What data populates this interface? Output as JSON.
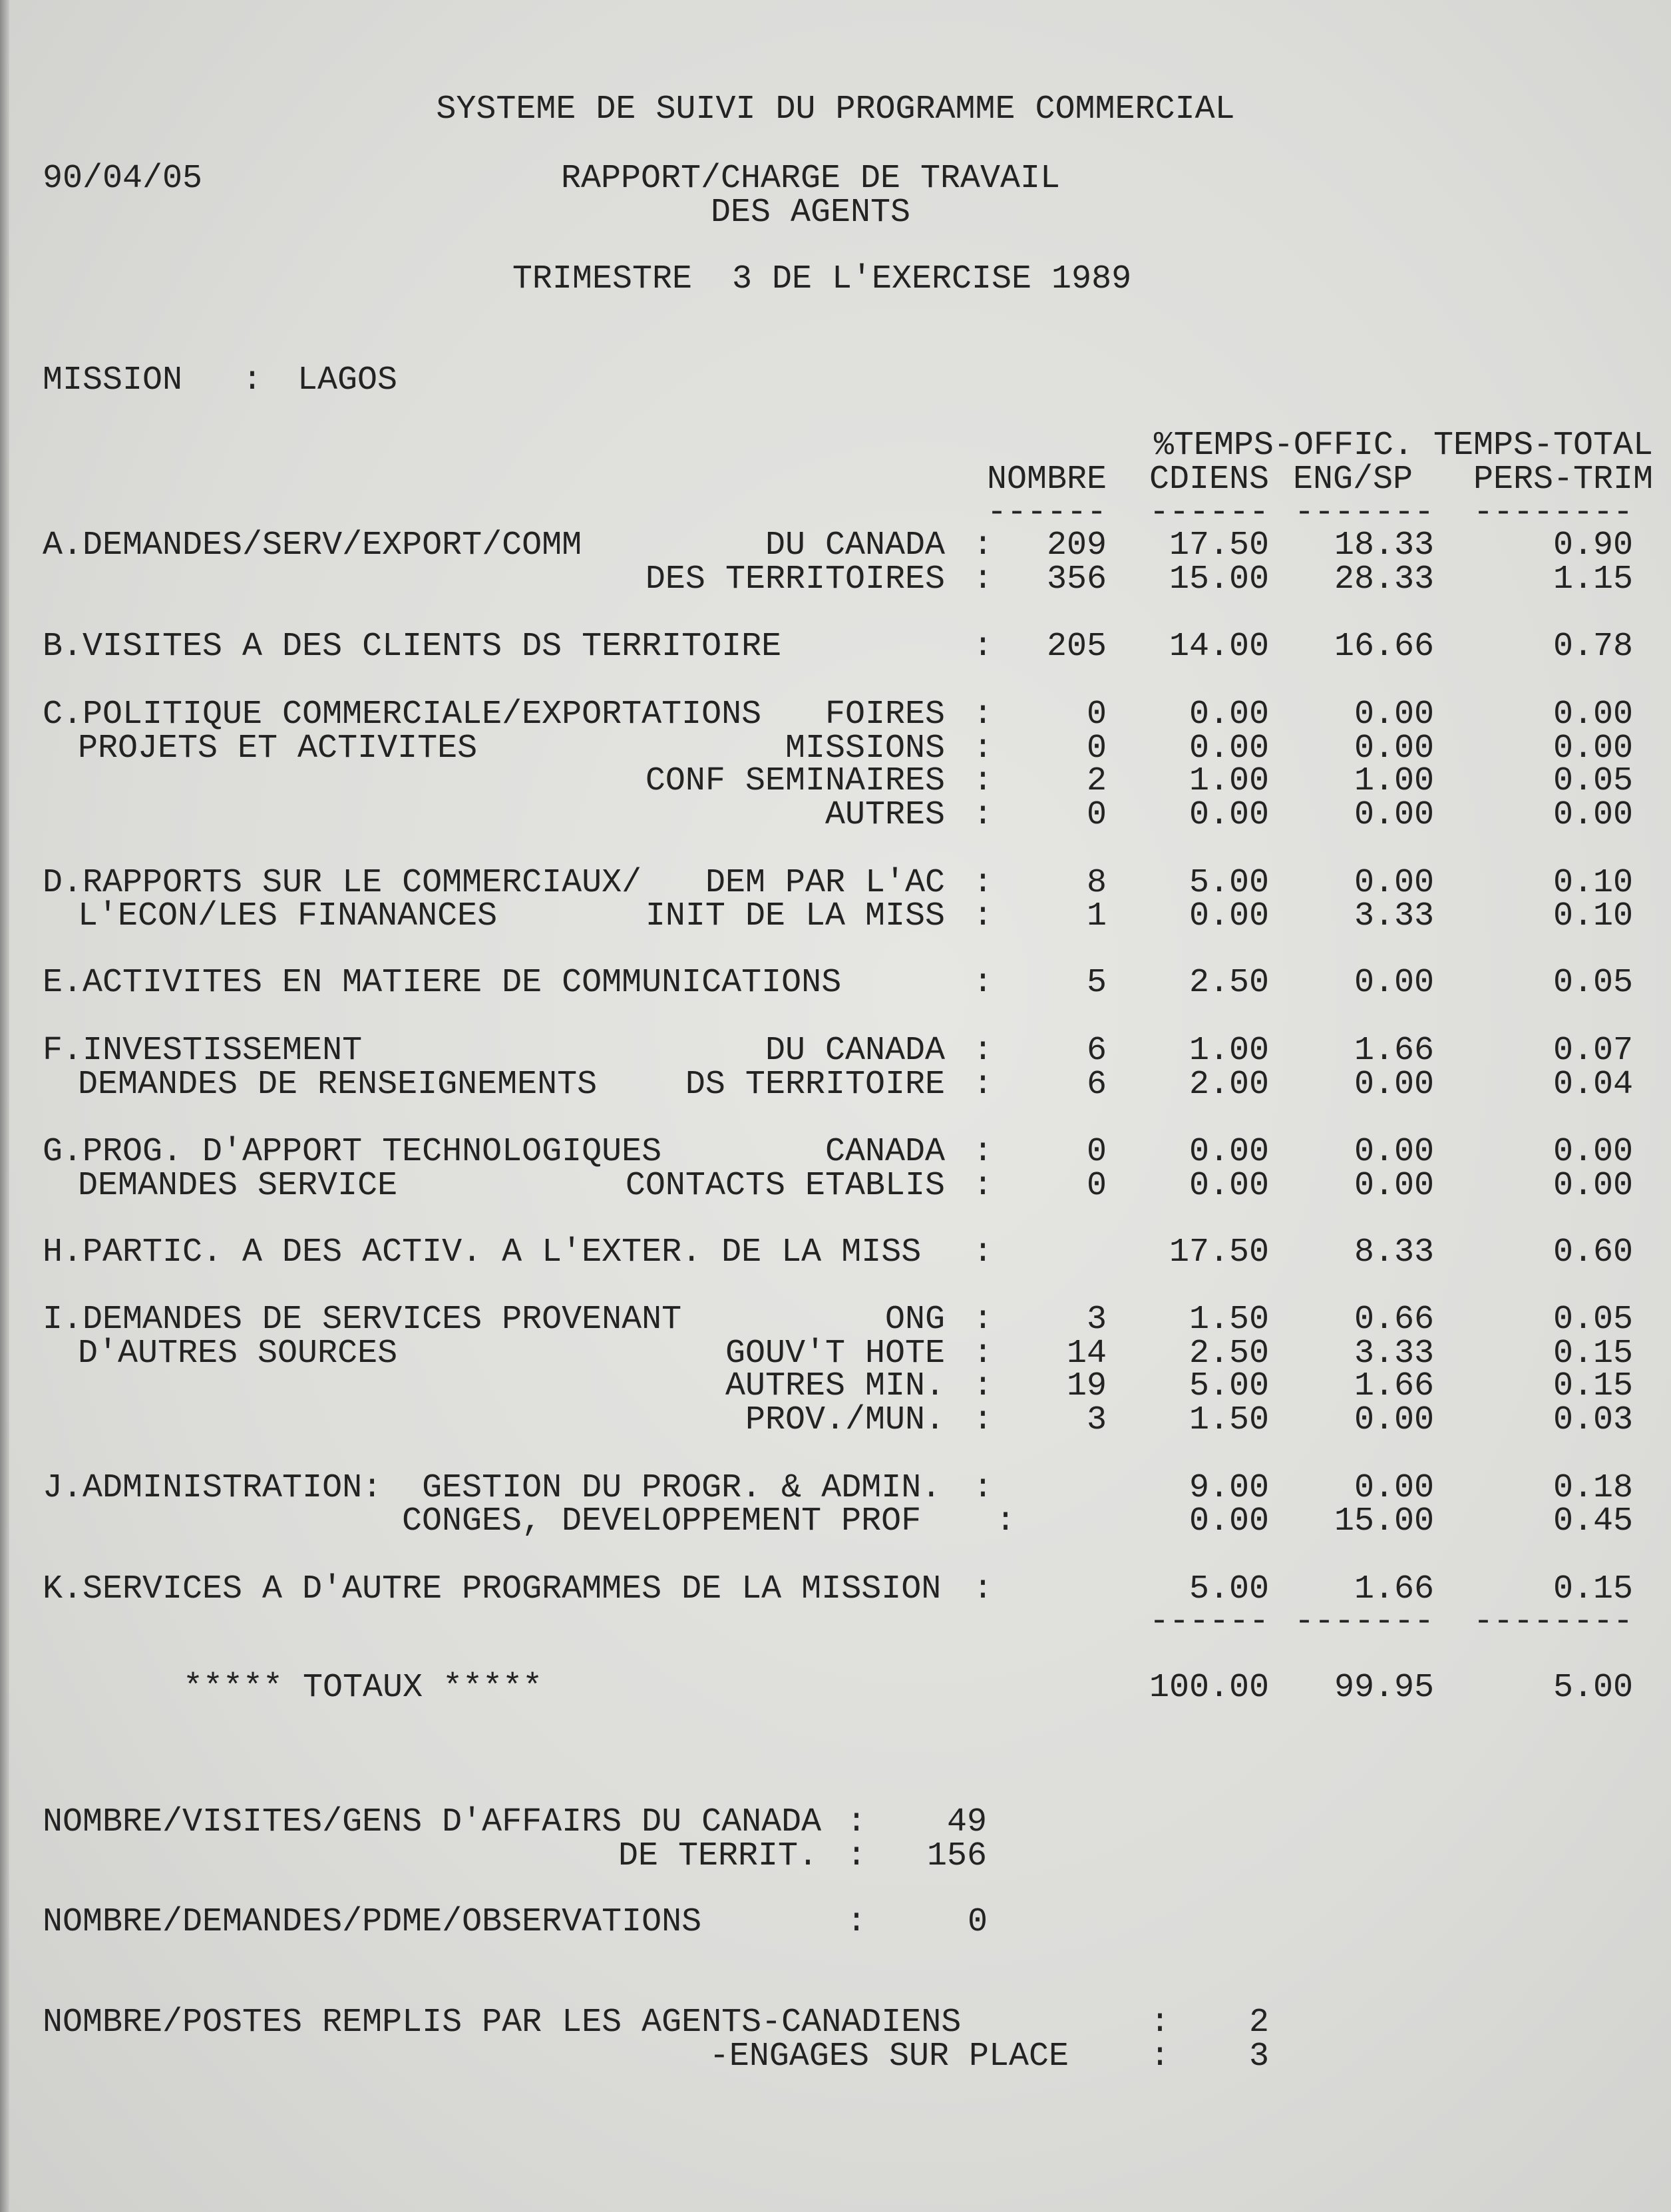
{
  "header": {
    "system_title": "SYSTEME DE SUIVI DU PROGRAMME COMMERCIAL",
    "date": "90/04/05",
    "report_title_1": "RAPPORT/CHARGE DE TRAVAIL",
    "report_title_2": "DES AGENTS",
    "period": "TRIMESTRE  3 DE L'EXERCISE 1989",
    "mission_label": "MISSION   :",
    "mission_value": "LAGOS"
  },
  "columns": {
    "group": "%TEMPS-OFFIC. TEMPS-TOTAL",
    "nombre": "NOMBRE",
    "cdiens": "CDIENS",
    "eng_sp": "ENG/SP",
    "pers_trim": "PERS-TRIM",
    "dash6": "------",
    "dash7": "-------",
    "dash8": "--------"
  },
  "colon": ":",
  "rows": [
    {
      "label": "A.DEMANDES/SERV/EXPORT/COMM",
      "sub": "DU CANADA",
      "nombre": "209",
      "cdiens": "17.50",
      "eng": "18.33",
      "pers": "0.90"
    },
    {
      "label": "",
      "sub": "DES TERRITOIRES",
      "nombre": "356",
      "cdiens": "15.00",
      "eng": "28.33",
      "pers": "1.15"
    },
    {
      "label": "B.VISITES A DES CLIENTS DS TERRITOIRE",
      "sub": "",
      "nombre": "205",
      "cdiens": "14.00",
      "eng": "16.66",
      "pers": "0.78"
    },
    {
      "label": "C.POLITIQUE COMMERCIALE/EXPORTATIONS",
      "sub": "FOIRES",
      "nombre": "0",
      "cdiens": "0.00",
      "eng": "0.00",
      "pers": "0.00"
    },
    {
      "label": "PROJETS ET ACTIVITES",
      "sub": "MISSIONS",
      "nombre": "0",
      "cdiens": "0.00",
      "eng": "0.00",
      "pers": "0.00"
    },
    {
      "label": "",
      "sub": "CONF SEMINAIRES",
      "nombre": "2",
      "cdiens": "1.00",
      "eng": "1.00",
      "pers": "0.05"
    },
    {
      "label": "",
      "sub": "AUTRES",
      "nombre": "0",
      "cdiens": "0.00",
      "eng": "0.00",
      "pers": "0.00"
    },
    {
      "label": "D.RAPPORTS SUR LE COMMERCIAUX/",
      "sub": "DEM PAR L'AC",
      "nombre": "8",
      "cdiens": "5.00",
      "eng": "0.00",
      "pers": "0.10"
    },
    {
      "label": "L'ECON/LES FINANANCES",
      "sub": "INIT DE LA MISS",
      "nombre": "1",
      "cdiens": "0.00",
      "eng": "3.33",
      "pers": "0.10"
    },
    {
      "label": "E.ACTIVITES EN MATIERE DE COMMUNICATIONS",
      "sub": "",
      "nombre": "5",
      "cdiens": "2.50",
      "eng": "0.00",
      "pers": "0.05"
    },
    {
      "label": "F.INVESTISSEMENT",
      "sub": "DU CANADA",
      "nombre": "6",
      "cdiens": "1.00",
      "eng": "1.66",
      "pers": "0.07"
    },
    {
      "label": "DEMANDES DE RENSEIGNEMENTS",
      "sub": "DS TERRITOIRE",
      "nombre": "6",
      "cdiens": "2.00",
      "eng": "0.00",
      "pers": "0.04"
    },
    {
      "label": "G.PROG. D'APPORT TECHNOLOGIQUES",
      "sub": "CANADA",
      "nombre": "0",
      "cdiens": "0.00",
      "eng": "0.00",
      "pers": "0.00"
    },
    {
      "label": "DEMANDES SERVICE",
      "sub": "CONTACTS ETABLIS",
      "nombre": "0",
      "cdiens": "0.00",
      "eng": "0.00",
      "pers": "0.00"
    },
    {
      "label": "H.PARTIC. A DES ACTIV. A L'EXTER. DE LA MISS",
      "sub": "",
      "nombre": "",
      "cdiens": "17.50",
      "eng": "8.33",
      "pers": "0.60"
    },
    {
      "label": "I.DEMANDES DE SERVICES PROVENANT",
      "sub": "ONG",
      "nombre": "3",
      "cdiens": "1.50",
      "eng": "0.66",
      "pers": "0.05"
    },
    {
      "label": "D'AUTRES SOURCES",
      "sub": "GOUV'T HOTE",
      "nombre": "14",
      "cdiens": "2.50",
      "eng": "3.33",
      "pers": "0.15"
    },
    {
      "label": "",
      "sub": "AUTRES MIN.",
      "nombre": "19",
      "cdiens": "5.00",
      "eng": "1.66",
      "pers": "0.15"
    },
    {
      "label": "",
      "sub": "PROV./MUN.",
      "nombre": "3",
      "cdiens": "1.50",
      "eng": "0.00",
      "pers": "0.03"
    },
    {
      "label": "J.ADMINISTRATION:  GESTION DU PROGR. & ADMIN.",
      "sub": "",
      "nombre": "",
      "cdiens": "9.00",
      "eng": "0.00",
      "pers": "0.18"
    },
    {
      "label": "CONGES, DEVELOPPEMENT PROF",
      "sub": "",
      "nombre": "",
      "cdiens": "0.00",
      "eng": "15.00",
      "pers": "0.45"
    },
    {
      "label": "K.SERVICES A D'AUTRE PROGRAMMES DE LA MISSION",
      "sub": "",
      "nombre": "",
      "cdiens": "5.00",
      "eng": "1.66",
      "pers": "0.15"
    }
  ],
  "totals": {
    "label": "***** TOTAUX *****",
    "cdiens": "100.00",
    "eng": "99.95",
    "pers": "5.00"
  },
  "footer": {
    "visites_label": "NOMBRE/VISITES/GENS D'AFFAIRS DU CANADA",
    "visites_canada": "49",
    "territ_label": "DE TERRIT.",
    "visites_territ": "156",
    "demandes_label": "NOMBRE/DEMANDES/PDME/OBSERVATIONS",
    "demandes": "0",
    "postes_label": "NOMBRE/POSTES REMPLIS PAR LES AGENTS-CANADIENS",
    "postes_canadiens": "2",
    "engages_label": "-ENGAGES SUR PLACE",
    "postes_engages": "3"
  }
}
